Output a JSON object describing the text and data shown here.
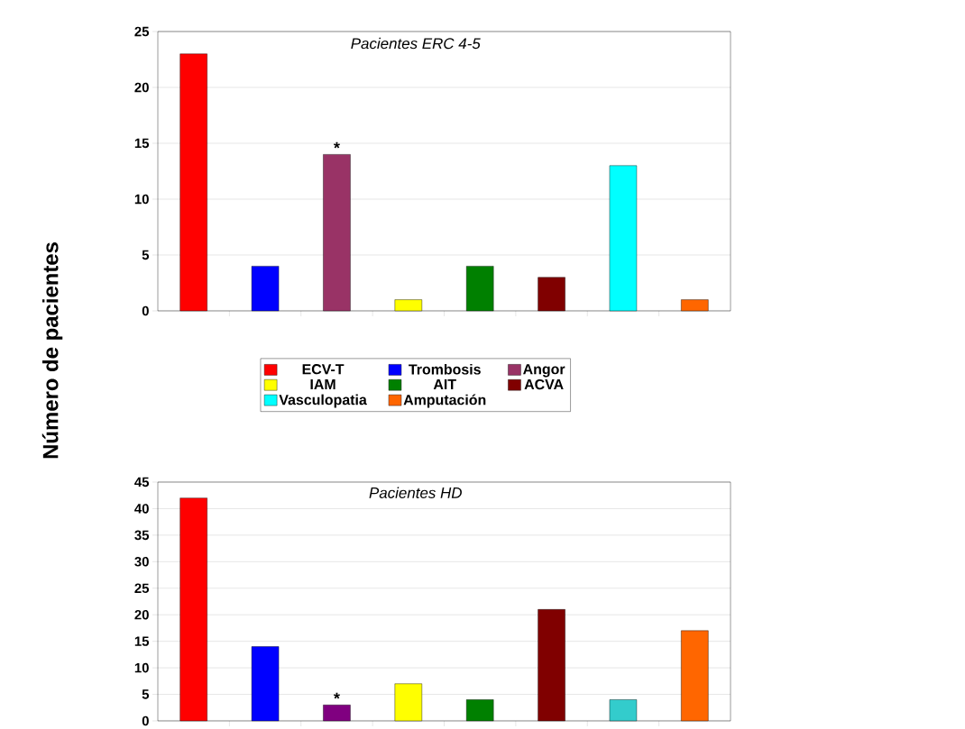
{
  "chart_data": [
    {
      "type": "bar",
      "title": "Pacientes ERC 4-5",
      "ylabel": "Número de pacientes",
      "categories": [
        null,
        null,
        null,
        null,
        null,
        null,
        null,
        null
      ],
      "series": [
        {
          "name": "ECV-T",
          "color": "#ff0000",
          "values": [
            23,
            null,
            null,
            null,
            null,
            null,
            null,
            null
          ]
        },
        {
          "name": "Trombosis",
          "color": "#0000ff",
          "values": [
            null,
            4,
            null,
            null,
            null,
            null,
            null,
            null
          ]
        },
        {
          "name": "Angor",
          "color": "#993366",
          "values": [
            null,
            null,
            14,
            null,
            null,
            null,
            null,
            null
          ]
        },
        {
          "name": "IAM",
          "color": "#ffff00",
          "values": [
            null,
            null,
            null,
            1,
            null,
            null,
            null,
            null
          ]
        },
        {
          "name": "AIT",
          "color": "#008000",
          "values": [
            null,
            null,
            null,
            null,
            4,
            null,
            null,
            null
          ]
        },
        {
          "name": "ACVA",
          "color": "#800000",
          "values": [
            null,
            null,
            null,
            null,
            null,
            3,
            null,
            null
          ]
        },
        {
          "name": "Vasculopatia",
          "color": "#00ffff",
          "values": [
            null,
            null,
            null,
            null,
            null,
            null,
            13,
            null
          ]
        },
        {
          "name": "Amputación",
          "color": "#ff6600",
          "values": [
            null,
            null,
            null,
            null,
            null,
            null,
            null,
            1
          ]
        }
      ],
      "ylim": [
        0,
        25
      ],
      "yticks": [
        0,
        5,
        10,
        15,
        20,
        25
      ],
      "grid": "y",
      "legend": "bottom",
      "annotations": [
        {
          "text": "*",
          "y": 14
        }
      ]
    },
    {
      "type": "bar",
      "title": "Pacientes  HD",
      "categories": [
        null,
        null,
        null,
        null,
        null,
        null,
        null,
        null
      ],
      "series": [
        {
          "color": "#ff0000",
          "values": [
            42,
            null,
            null,
            null,
            null,
            null,
            null,
            null
          ]
        },
        {
          "color": "#0000ff",
          "values": [
            null,
            14,
            null,
            null,
            null,
            null,
            null,
            null
          ]
        },
        {
          "color": "#800080",
          "values": [
            null,
            null,
            3,
            null,
            null,
            null,
            null,
            null
          ]
        },
        {
          "color": "#ffff00",
          "values": [
            null,
            null,
            null,
            7,
            null,
            null,
            null,
            null
          ]
        },
        {
          "color": "#008000",
          "values": [
            null,
            null,
            null,
            null,
            4,
            null,
            null,
            null
          ]
        },
        {
          "color": "#800000",
          "values": [
            null,
            null,
            null,
            null,
            null,
            21,
            null,
            null
          ]
        },
        {
          "color": "#33cccc",
          "values": [
            null,
            null,
            null,
            null,
            null,
            null,
            4,
            null
          ]
        },
        {
          "color": "#ff6600",
          "values": [
            null,
            null,
            null,
            null,
            null,
            null,
            null,
            17
          ]
        }
      ],
      "ylim": [
        0,
        45
      ],
      "yticks": [
        0,
        5,
        10,
        15,
        20,
        25,
        30,
        35,
        40,
        45
      ],
      "grid": "y",
      "annotations": [
        {
          "text": "*",
          "y": 3
        }
      ]
    }
  ]
}
